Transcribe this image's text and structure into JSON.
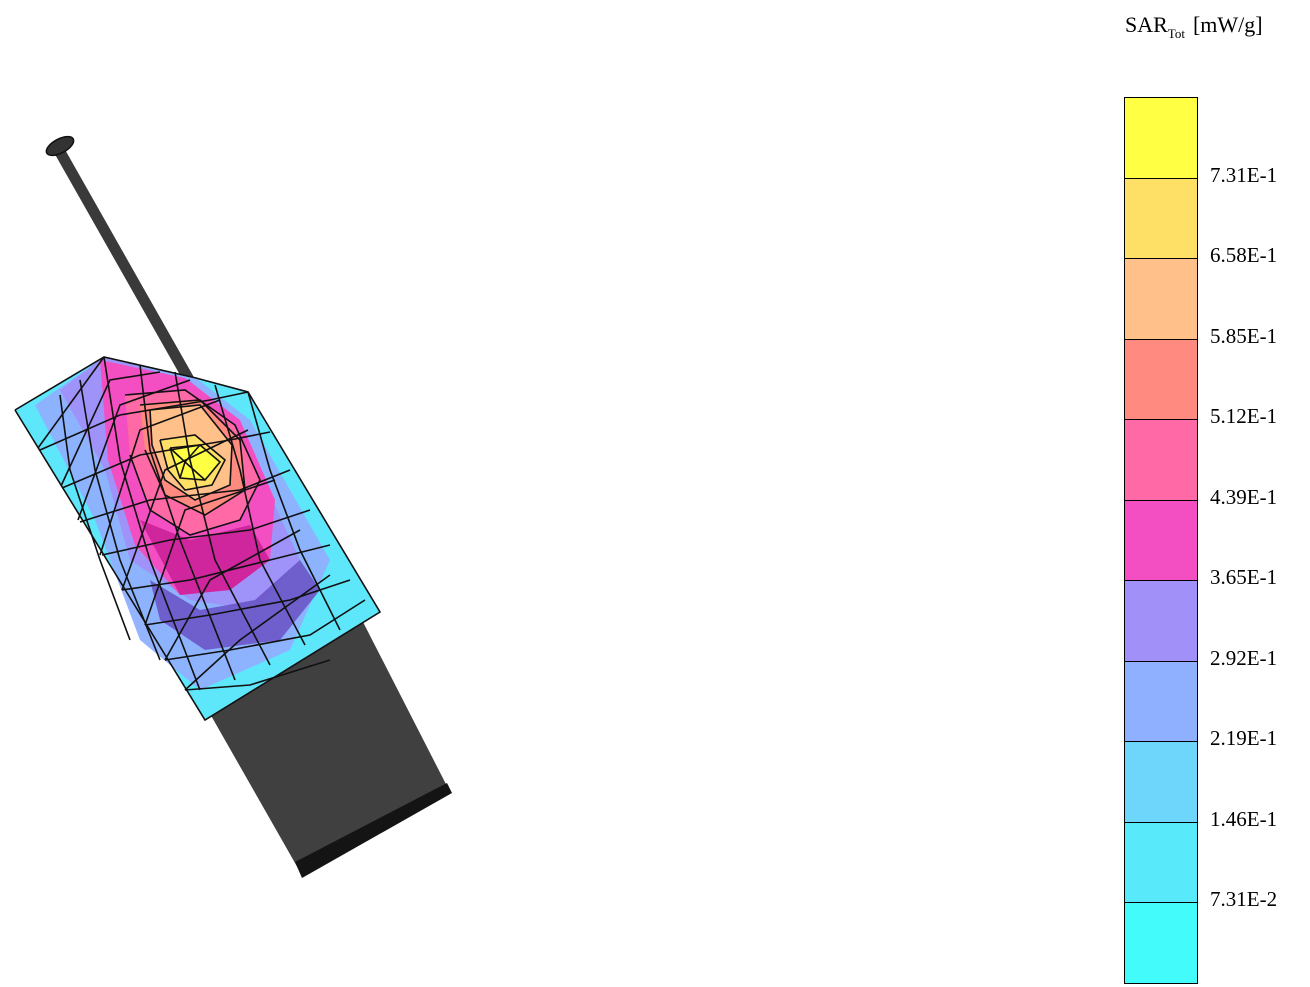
{
  "legend": {
    "quantity": "SAR",
    "subscript": "Tot",
    "unit": "[mW/g]",
    "bands": [
      {
        "color": "#ffff44"
      },
      {
        "color": "#ffe066"
      },
      {
        "color": "#ffc08a"
      },
      {
        "color": "#ff8a80"
      },
      {
        "color": "#ff6aa6"
      },
      {
        "color": "#f34fc2"
      },
      {
        "color": "#a090f8"
      },
      {
        "color": "#8fb0ff"
      },
      {
        "color": "#6ed6fa"
      },
      {
        "color": "#58eafa"
      },
      {
        "color": "#44fbfb"
      }
    ],
    "tick_labels": [
      "7.31E-1",
      "6.58E-1",
      "5.85E-1",
      "5.12E-1",
      "4.39E-1",
      "3.65E-1",
      "2.92E-1",
      "2.19E-1",
      "1.46E-1",
      "7.31E-2"
    ]
  },
  "model": {
    "antenna_color": "#3a3a3a",
    "body_color": "#404040",
    "body_edge_color": "#141414"
  }
}
